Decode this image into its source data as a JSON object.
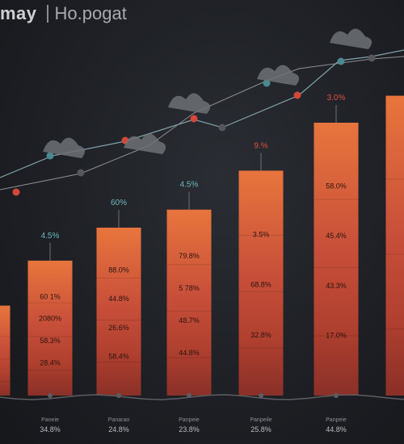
{
  "header": {
    "title": "may",
    "subtitle": "Ho.pogat"
  },
  "colors": {
    "bar_top": "#e8753d",
    "bar_mid": "#c9503a",
    "bar_low": "#b0402f",
    "bar_bottom": "#8a3028",
    "line_main": "#7fa3a8",
    "line_second": "#8d8f94",
    "dot_red": "#d5473a",
    "dot_teal": "#4a8a92",
    "label_teal": "#6fb8c0",
    "label_red": "#e0503c"
  },
  "chart_data": {
    "type": "bar",
    "categories": [
      "",
      "",
      "",
      "",
      "",
      "",
      ""
    ],
    "series": [
      {
        "values": [
          3,
          4.5,
          5.6,
          6.2,
          7.5,
          9.1,
          10
        ]
      }
    ],
    "ylim": [
      0,
      10.5
    ],
    "top_labels": [
      "",
      "4.5%",
      "60%",
      "4.5%",
      "9.%",
      "3.0%",
      ""
    ],
    "segment_labels": [
      [],
      [
        "60 1%",
        "2080%",
        "58.3%",
        "28.4%"
      ],
      [
        "88.0%",
        "44.8%",
        "26.6%",
        "58.4%"
      ],
      [
        "79.8%",
        "5 78%",
        "48.7%",
        "44.8%"
      ],
      [
        "3.5%",
        "68.8%",
        "32.8%"
      ],
      [
        "58.0%",
        "45.4%",
        "43.3%",
        "17.0%"
      ],
      []
    ],
    "x_labels_top": [
      "",
      "Paneie",
      "Panarao",
      "Panpeie",
      "Panpeile",
      "Panpeie",
      ""
    ],
    "x_labels_bottom": [
      "",
      "34.8%",
      "24.8%",
      "23.8%",
      "25.8%",
      "44.8%",
      ""
    ],
    "grid": false,
    "legend": "none"
  }
}
